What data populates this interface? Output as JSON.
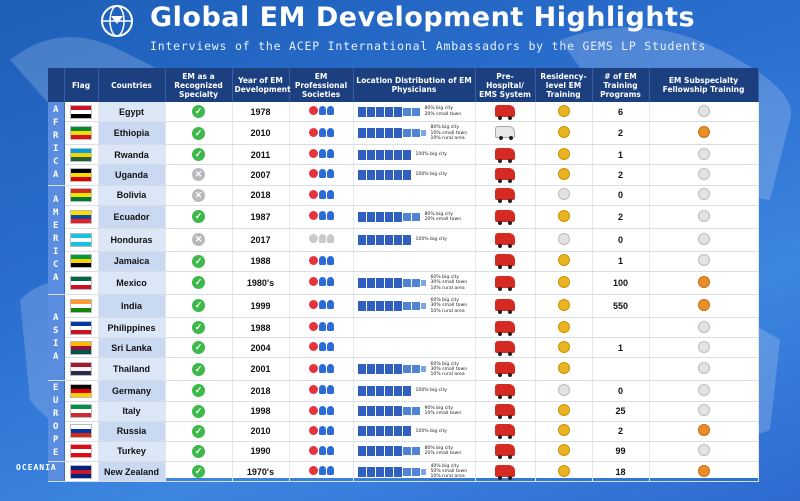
{
  "header": {
    "title": "Global EM Development Highlights",
    "subtitle": "Interviews of the ACEP International Ambassadors by the GEMS LP Students"
  },
  "columns": {
    "flag": "Flag",
    "countries": "Countries",
    "recognized": "EM as a Recognized Specialty",
    "year": "Year of EM Development",
    "societies": "EM Professional Societies",
    "location": "Location Distribution of EM Physicians",
    "prehospital": "Pre-Hospital/ EMS System",
    "residency": "Residency-level EM Training",
    "programs": "# of EM Training Programs",
    "fellowship": "EM Subspecialty Fellowship Training"
  },
  "regions": {
    "africa": [
      "A",
      "F",
      "R",
      "I",
      "C",
      "A"
    ],
    "america": [
      "A",
      "M",
      "E",
      "R",
      "I",
      "C",
      "A"
    ],
    "asia": [
      "A",
      "S",
      "I",
      "A"
    ],
    "europe": [
      "E",
      "U",
      "R",
      "O",
      "P",
      "E"
    ],
    "oceania": "OCEANIA"
  },
  "rows": [
    {
      "country": "Egypt",
      "flag": [
        "#ce1126",
        "#ffffff",
        "#000000"
      ],
      "recognized": "yes",
      "year": "1978",
      "societies": "active",
      "location": [
        "80% big city",
        "20% small town"
      ],
      "loc_kind": "bs",
      "ems": "red",
      "residency": "gold",
      "programs": "6",
      "fellowship": "grey"
    },
    {
      "country": "Ethiopia",
      "flag": [
        "#078930",
        "#fcdd09",
        "#da121a"
      ],
      "recognized": "yes",
      "year": "2010",
      "societies": "active",
      "location": [
        "80% big city",
        "10% small town",
        "10% rural area"
      ],
      "loc_kind": "bsr",
      "ems": "grey",
      "residency": "gold",
      "programs": "2",
      "fellowship": "orange"
    },
    {
      "country": "Rwanda",
      "flag": [
        "#00a1de",
        "#fad201",
        "#20603d"
      ],
      "recognized": "yes",
      "year": "2011",
      "societies": "active",
      "location": [
        "100% big city"
      ],
      "loc_kind": "b",
      "ems": "red",
      "residency": "gold",
      "programs": "1",
      "fellowship": "grey"
    },
    {
      "country": "Uganda",
      "flag": [
        "#000000",
        "#fcdc04",
        "#d90000"
      ],
      "recognized": "no",
      "year": "2007",
      "societies": "active",
      "location": [
        "100% big city"
      ],
      "loc_kind": "b",
      "ems": "red",
      "residency": "gold",
      "programs": "2",
      "fellowship": "grey"
    },
    {
      "country": "Bolivia",
      "flag": [
        "#d52b1e",
        "#f9e300",
        "#007934"
      ],
      "recognized": "no",
      "year": "2018",
      "societies": "active",
      "location": [],
      "loc_kind": "",
      "ems": "red",
      "residency": "grey",
      "programs": "0",
      "fellowship": "grey"
    },
    {
      "country": "Ecuador",
      "flag": [
        "#ffdd00",
        "#034ea2",
        "#ed1c24"
      ],
      "recognized": "yes",
      "year": "1987",
      "societies": "active",
      "location": [
        "80% big city",
        "20% small town"
      ],
      "loc_kind": "bs",
      "ems": "red",
      "residency": "gold",
      "programs": "2",
      "fellowship": "grey"
    },
    {
      "country": "Honduras",
      "flag": [
        "#18c3df",
        "#ffffff",
        "#18c3df"
      ],
      "recognized": "no",
      "year": "2017",
      "societies": "grey",
      "location": [
        "100% big city"
      ],
      "loc_kind": "b",
      "ems": "red",
      "residency": "grey",
      "programs": "0",
      "fellowship": "grey"
    },
    {
      "country": "Jamaica",
      "flag": [
        "#009b3a",
        "#fed100",
        "#000000"
      ],
      "recognized": "yes",
      "year": "1988",
      "societies": "active",
      "location": [],
      "loc_kind": "",
      "ems": "red",
      "residency": "gold",
      "programs": "1",
      "fellowship": "grey"
    },
    {
      "country": "Mexico",
      "flag": [
        "#006847",
        "#ffffff",
        "#ce1126"
      ],
      "recognized": "yes",
      "year": "1980's",
      "societies": "active",
      "location": [
        "60% big city",
        "30% small town",
        "10% rural area"
      ],
      "loc_kind": "bsr",
      "ems": "red",
      "residency": "gold",
      "programs": "100",
      "fellowship": "orange"
    },
    {
      "country": "India",
      "flag": [
        "#ff9933",
        "#ffffff",
        "#138808"
      ],
      "recognized": "yes",
      "year": "1999",
      "societies": "active",
      "location": [
        "60% big city",
        "30% small town",
        "10% rural area"
      ],
      "loc_kind": "bsr",
      "ems": "red",
      "residency": "gold",
      "programs": "550",
      "fellowship": "orange"
    },
    {
      "country": "Philippines",
      "flag": [
        "#0038a8",
        "#ffffff",
        "#ce1126"
      ],
      "recognized": "yes",
      "year": "1988",
      "societies": "active",
      "location": [],
      "loc_kind": "",
      "ems": "red",
      "residency": "gold",
      "programs": "",
      "fellowship": "grey"
    },
    {
      "country": "Sri Lanka",
      "flag": [
        "#ffb700",
        "#8d153a",
        "#00534e"
      ],
      "recognized": "yes",
      "year": "2004",
      "societies": "active",
      "location": [],
      "loc_kind": "",
      "ems": "red",
      "residency": "gold",
      "programs": "1",
      "fellowship": "grey"
    },
    {
      "country": "Thailand",
      "flag": [
        "#a51931",
        "#f4f5f8",
        "#2d2a4a"
      ],
      "recognized": "yes",
      "year": "2001",
      "societies": "active",
      "location": [
        "60% big city",
        "30% small town",
        "10% rural area"
      ],
      "loc_kind": "bsr",
      "ems": "red",
      "residency": "gold",
      "programs": "",
      "fellowship": "grey"
    },
    {
      "country": "Germany",
      "flag": [
        "#000000",
        "#dd0000",
        "#ffce00"
      ],
      "recognized": "yes",
      "year": "2018",
      "societies": "active",
      "location": [
        "100% big city"
      ],
      "loc_kind": "b",
      "ems": "red",
      "residency": "grey",
      "programs": "0",
      "fellowship": "grey"
    },
    {
      "country": "Italy",
      "flag": [
        "#009246",
        "#ffffff",
        "#ce2b37"
      ],
      "recognized": "yes",
      "year": "1998",
      "societies": "active",
      "location": [
        "90% big city",
        "10% small town"
      ],
      "loc_kind": "bs",
      "ems": "red",
      "residency": "gold",
      "programs": "25",
      "fellowship": "grey"
    },
    {
      "country": "Russia",
      "flag": [
        "#ffffff",
        "#0039a6",
        "#d52b1e"
      ],
      "recognized": "yes",
      "year": "2010",
      "societies": "active",
      "location": [
        "100% big city"
      ],
      "loc_kind": "b",
      "ems": "red",
      "residency": "gold",
      "programs": "2",
      "fellowship": "orange"
    },
    {
      "country": "Turkey",
      "flag": [
        "#e30a17",
        "#ffffff",
        "#e30a17"
      ],
      "recognized": "yes",
      "year": "1990",
      "societies": "active",
      "location": [
        "80% big city",
        "20% small town"
      ],
      "loc_kind": "bs",
      "ems": "red",
      "residency": "gold",
      "programs": "99",
      "fellowship": "grey"
    },
    {
      "country": "New Zealand",
      "flag": [
        "#00247d",
        "#cc142b",
        "#00247d"
      ],
      "recognized": "yes",
      "year": "1970's",
      "societies": "active",
      "location": [
        "40% big city",
        "50% small town",
        "10% rural area"
      ],
      "loc_kind": "bsr",
      "ems": "red",
      "residency": "gold",
      "programs": "18",
      "fellowship": "orange"
    }
  ]
}
